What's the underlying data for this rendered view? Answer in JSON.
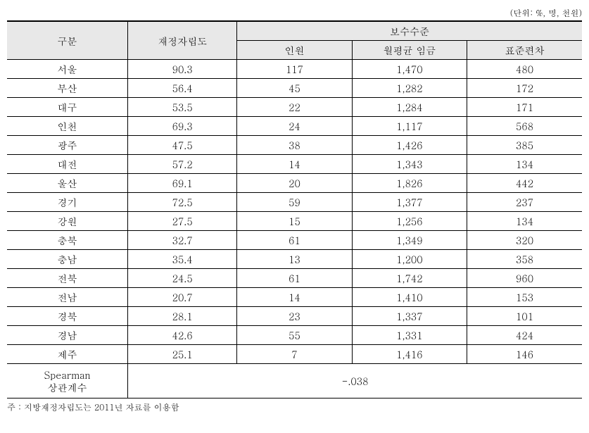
{
  "unit_note": "(단위: %, 명, 천원)",
  "headers": {
    "col1": "구분",
    "col2": "재정자립도",
    "col3_group": "보수수준",
    "col3_sub1": "인원",
    "col3_sub2": "월평균 임금",
    "col3_sub3": "표준편차"
  },
  "rows": [
    {
      "region": "서울",
      "fiscal": "90.3",
      "count": "117",
      "wage": "1,470",
      "std": "480"
    },
    {
      "region": "부산",
      "fiscal": "56.4",
      "count": "45",
      "wage": "1,282",
      "std": "172"
    },
    {
      "region": "대구",
      "fiscal": "53.5",
      "count": "22",
      "wage": "1,284",
      "std": "171"
    },
    {
      "region": "인천",
      "fiscal": "69.3",
      "count": "24",
      "wage": "1,117",
      "std": "568"
    },
    {
      "region": "광주",
      "fiscal": "47.5",
      "count": "38",
      "wage": "1,426",
      "std": "385"
    },
    {
      "region": "대전",
      "fiscal": "57.2",
      "count": "14",
      "wage": "1,343",
      "std": "134"
    },
    {
      "region": "울산",
      "fiscal": "69.1",
      "count": "20",
      "wage": "1,826",
      "std": "442"
    },
    {
      "region": "경기",
      "fiscal": "72.5",
      "count": "59",
      "wage": "1,377",
      "std": "237"
    },
    {
      "region": "강원",
      "fiscal": "27.5",
      "count": "15",
      "wage": "1,256",
      "std": "134"
    },
    {
      "region": "충북",
      "fiscal": "32.7",
      "count": "61",
      "wage": "1,349",
      "std": "320"
    },
    {
      "region": "충남",
      "fiscal": "35.4",
      "count": "13",
      "wage": "1,200",
      "std": "358"
    },
    {
      "region": "전북",
      "fiscal": "24.5",
      "count": "61",
      "wage": "1,742",
      "std": "960"
    },
    {
      "region": "전남",
      "fiscal": "20.7",
      "count": "14",
      "wage": "1,410",
      "std": "153"
    },
    {
      "region": "경북",
      "fiscal": "28.1",
      "count": "23",
      "wage": "1,337",
      "std": "101"
    },
    {
      "region": "경남",
      "fiscal": "42.6",
      "count": "55",
      "wage": "1,331",
      "std": "424"
    },
    {
      "region": "제주",
      "fiscal": "25.1",
      "count": "7",
      "wage": "1,416",
      "std": "146"
    }
  ],
  "spearman": {
    "label_line1": "Spearman",
    "label_line2": "상관계수",
    "value": "-.038"
  },
  "footnote": "주 : 지방재정자립도는 2011년 자료를 이용함",
  "style": {
    "header_bg": "#e8e8e8",
    "border_color": "#000000",
    "font_size_body": 14,
    "font_size_small": 12,
    "col_widths": {
      "col1": "21%",
      "col2": "19%",
      "col3": "20%",
      "col4": "20%",
      "col5": "20%"
    }
  }
}
